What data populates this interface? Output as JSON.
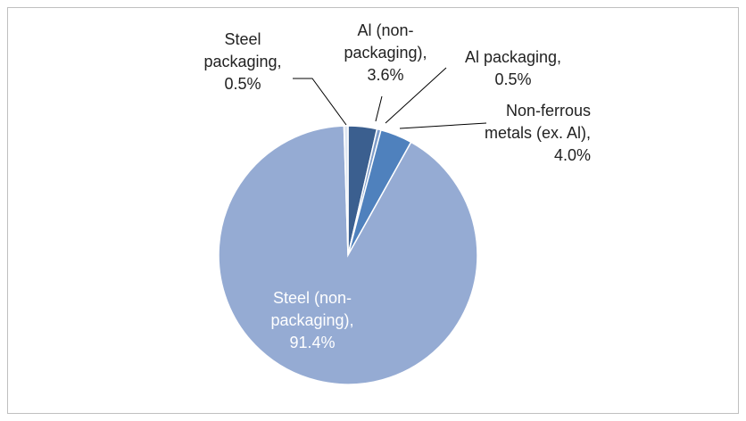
{
  "chart_data": {
    "type": "pie",
    "labels": [
      "Al (non-packaging), 3.6%",
      "Al packaging, 0.5%",
      "Non-ferrous metals (ex. Al), 4.0%",
      "Steel (non-packaging), 91.4%",
      "Steel packaging, 0.5%"
    ],
    "values": [
      3.6,
      0.5,
      4.0,
      91.4,
      0.5
    ],
    "colors": [
      "#3b5f8f",
      "#7e9cc9",
      "#4f81bd",
      "#95abd3",
      "#dde5f1"
    ]
  }
}
